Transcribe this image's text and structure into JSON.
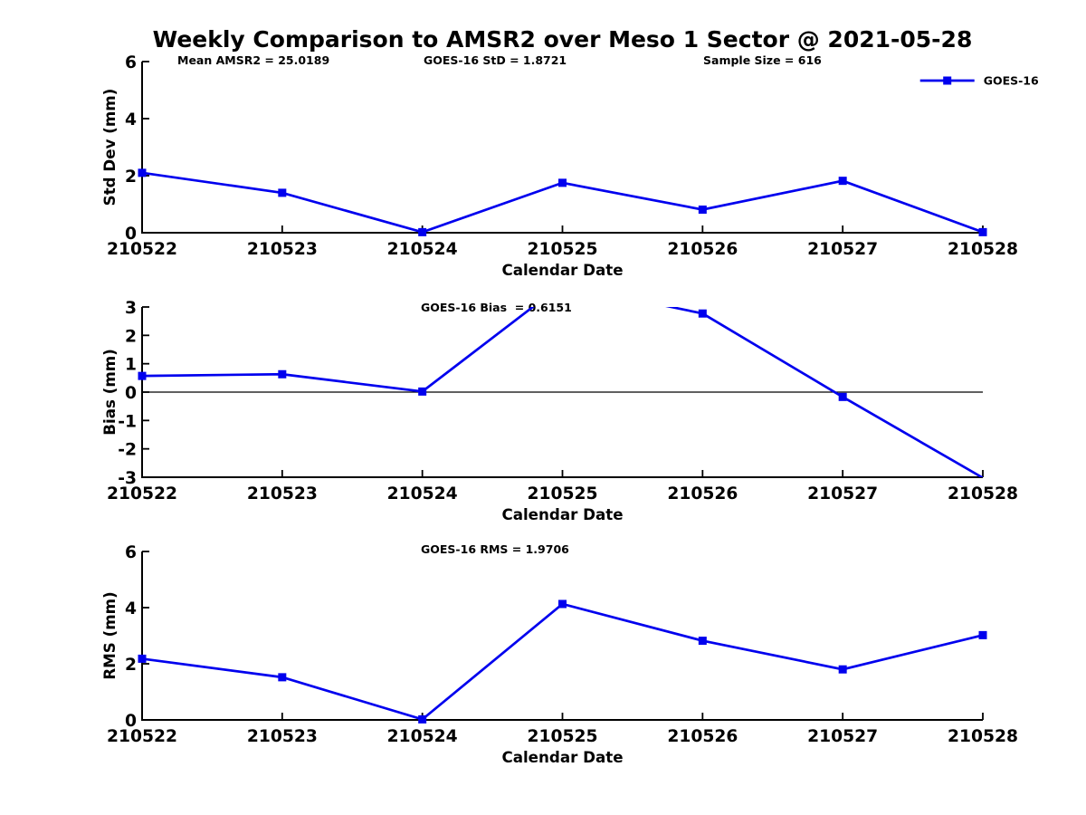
{
  "figure": {
    "title": "Weekly Comparison to AMSR2 over Meso 1 Sector @ 2021-05-28",
    "colors": {
      "line": "#0000ee",
      "text": "#000000",
      "background": "#ffffff"
    },
    "legend": {
      "label": "GOES-16",
      "marker": "filled-square",
      "location": "top-right"
    }
  },
  "chart_data": [
    {
      "type": "line",
      "name": "std-dev-vs-date",
      "annotations": [
        "Mean AMSR2 = 25.0189",
        "GOES-16 StD = 1.8721",
        "Sample Size = 616"
      ],
      "categories": [
        "210522",
        "210523",
        "210524",
        "210525",
        "210526",
        "210527",
        "210528"
      ],
      "series": [
        {
          "name": "GOES-16",
          "values": [
            2.1,
            1.4,
            0.02,
            1.75,
            0.81,
            1.82,
            0.02
          ]
        }
      ],
      "xlabel": "Calendar Date",
      "ylabel": "Std Dev (mm)",
      "ylim": [
        0,
        6
      ],
      "yticks": [
        0,
        2,
        4,
        6
      ],
      "grid": false,
      "legend_visible": true
    },
    {
      "type": "line",
      "name": "bias-vs-date",
      "annotations": [
        "GOES-16 Bias  = 0.6151"
      ],
      "categories": [
        "210522",
        "210523",
        "210524",
        "210525",
        "210526",
        "210527",
        "210528"
      ],
      "series": [
        {
          "name": "GOES-16",
          "values": [
            0.57,
            0.63,
            0.02,
            3.8,
            2.77,
            -0.17,
            -3.02
          ]
        }
      ],
      "xlabel": "Calendar Date",
      "ylabel": "Bias (mm)",
      "ylim": [
        -3,
        3
      ],
      "yticks": [
        -3,
        -2,
        -1,
        0,
        1,
        2,
        3
      ],
      "zero_line": true,
      "clip_to_axes": true,
      "grid": false,
      "legend_visible": false
    },
    {
      "type": "line",
      "name": "rms-vs-date",
      "annotations": [
        "GOES-16 RMS = 1.9706"
      ],
      "categories": [
        "210522",
        "210523",
        "210524",
        "210525",
        "210526",
        "210527",
        "210528"
      ],
      "series": [
        {
          "name": "GOES-16",
          "values": [
            2.18,
            1.52,
            0.02,
            4.13,
            2.82,
            1.8,
            3.02
          ]
        }
      ],
      "xlabel": "Calendar Date",
      "ylabel": "RMS (mm)",
      "ylim": [
        0,
        6
      ],
      "yticks": [
        0,
        2,
        4,
        6
      ],
      "grid": false,
      "legend_visible": false
    }
  ]
}
